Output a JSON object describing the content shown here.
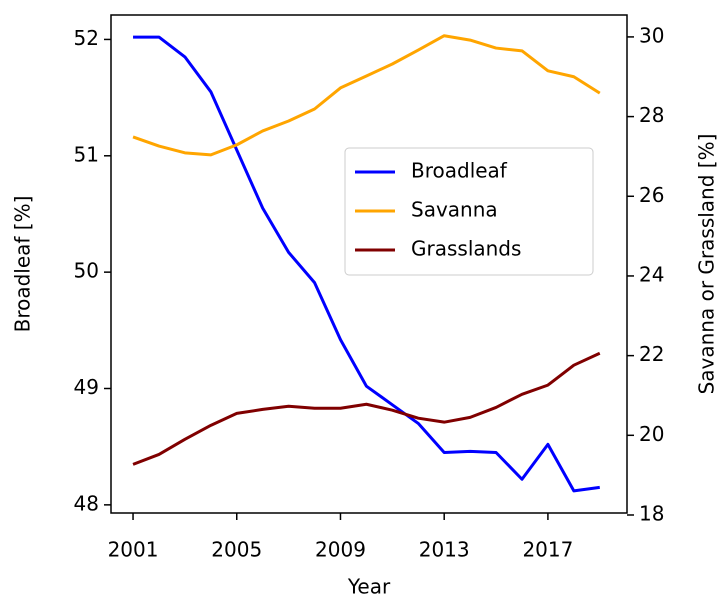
{
  "chart_data": {
    "type": "line",
    "x_label": "Year",
    "y_label": "Broadleaf [%]",
    "y2_label": "Savanna or Grassland [%]",
    "x": [
      2001,
      2002,
      2003,
      2004,
      2005,
      2006,
      2007,
      2008,
      2009,
      2010,
      2011,
      2012,
      2013,
      2014,
      2015,
      2016,
      2017,
      2018,
      2019
    ],
    "xlim": [
      2000.15,
      2020.05
    ],
    "xticks": [
      2001,
      2005,
      2009,
      2013,
      2017
    ],
    "ylim": [
      47.93,
      52.21
    ],
    "yticks": [
      48,
      49,
      50,
      51,
      52
    ],
    "y2lim": [
      18.05,
      30.55
    ],
    "y2ticks": [
      18,
      20,
      22,
      24,
      26,
      28,
      30
    ],
    "legend": "center right",
    "series": [
      {
        "name": "Broadleaf",
        "color": "#0000ff",
        "values": [
          52.02,
          52.02,
          51.85,
          51.55,
          51.05,
          50.55,
          50.17,
          49.91,
          49.42,
          49.02,
          48.86,
          48.7,
          48.45,
          48.46,
          48.45,
          48.22,
          48.52,
          48.12,
          48.15
        ]
      },
      {
        "name": "Savanna",
        "color": "#ffa500",
        "axis": "y2",
        "values": [
          27.49,
          27.26,
          27.09,
          27.04,
          27.29,
          27.64,
          27.89,
          28.19,
          28.72,
          29.02,
          29.32,
          29.67,
          30.03,
          29.92,
          29.72,
          29.65,
          29.15,
          29.0,
          28.59
        ]
      },
      {
        "name": "Grasslands",
        "color": "#800000",
        "axis": "y2",
        "values": [
          19.27,
          19.52,
          19.9,
          20.25,
          20.55,
          20.65,
          20.73,
          20.68,
          20.68,
          20.78,
          20.63,
          20.43,
          20.33,
          20.45,
          20.7,
          21.03,
          21.26,
          21.76,
          22.06
        ]
      }
    ]
  }
}
